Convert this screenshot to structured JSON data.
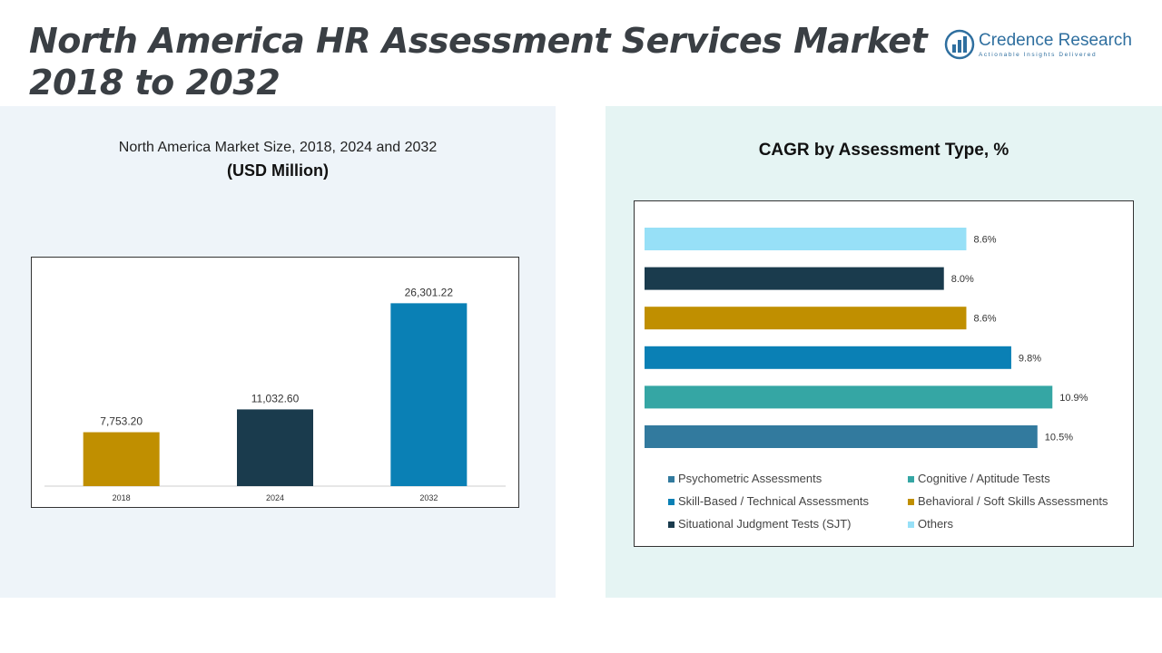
{
  "header": {
    "title_line1": "North America HR Assessment Services Market",
    "title_line2": "2018 to 2032"
  },
  "logo": {
    "name": "Credence Research",
    "tagline": "Actionable Insights Delivered"
  },
  "colors": {
    "gold": "#c08f00",
    "dark_navy": "#1a3b4d",
    "blue": "#0a80b5",
    "teal": "#35a6a4",
    "steel_blue": "#327a9e",
    "light_cyan": "#97e0f7"
  },
  "chart_data": [
    {
      "type": "bar",
      "title": "North America Market Size, 2018, 2024 and 2032",
      "subtitle": "(USD Million)",
      "categories": [
        "2018",
        "2024",
        "2032"
      ],
      "values": [
        7753.2,
        11032.6,
        26301.22
      ],
      "value_labels": [
        "7,753.20",
        "11,032.60",
        "26,301.22"
      ],
      "bar_colors": [
        "#c08f00",
        "#1a3b4d",
        "#0a80b5"
      ],
      "ylim": [
        0,
        30000
      ],
      "grid": false
    },
    {
      "type": "bar",
      "orientation": "horizontal",
      "title": "CAGR by Assessment Type, %",
      "categories": [
        "Others",
        "Situational Judgment Tests (SJT)",
        "Behavioral / Soft Skills Assessments",
        "Skill-Based / Technical Assessments",
        "Cognitive / Aptitude Tests",
        "Psychometric Assessments"
      ],
      "values": [
        8.6,
        8.0,
        8.6,
        9.8,
        10.9,
        10.5
      ],
      "value_labels": [
        "8.6%",
        "8.0%",
        "8.6%",
        "9.8%",
        "10.9%",
        "10.5%"
      ],
      "bar_colors": [
        "#97e0f7",
        "#1a3b4d",
        "#c08f00",
        "#0a80b5",
        "#35a6a4",
        "#327a9e"
      ],
      "xlim": [
        0,
        11.5
      ],
      "grid": false,
      "legend": {
        "placement": "bottom",
        "items": [
          {
            "label": "Psychometric Assessments",
            "color": "#327a9e"
          },
          {
            "label": "Cognitive / Aptitude Tests",
            "color": "#35a6a4"
          },
          {
            "label": "Skill-Based / Technical Assessments",
            "color": "#0a80b5"
          },
          {
            "label": "Behavioral / Soft Skills Assessments",
            "color": "#c08f00"
          },
          {
            "label": "Situational Judgment Tests (SJT)",
            "color": "#1a3b4d"
          },
          {
            "label": "Others",
            "color": "#97e0f7"
          }
        ]
      }
    }
  ]
}
